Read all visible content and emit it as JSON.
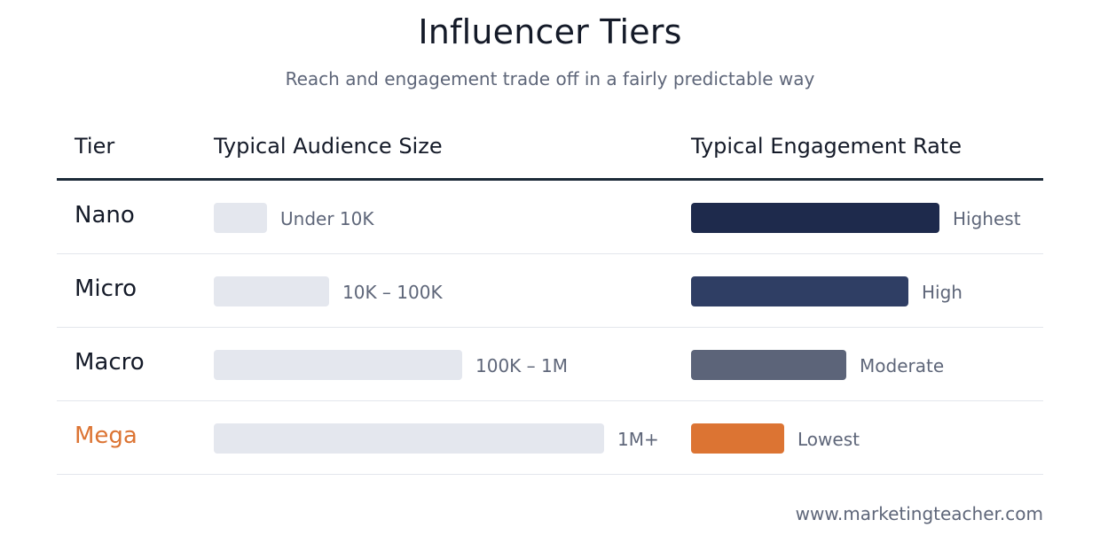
{
  "title": "Influencer Tiers",
  "subtitle": "Reach and engagement trade off in a fairly predictable way",
  "headers": {
    "tier": "Tier",
    "audience": "Typical Audience Size",
    "engagement": "Typical Engagement Rate"
  },
  "rows": [
    {
      "tier": "Nano",
      "audience_label": "Under 10K",
      "audience_level": 1,
      "engagement_label": "Highest",
      "engagement_level": 4,
      "engagement_color": "#1e2a4c"
    },
    {
      "tier": "Micro",
      "audience_label": "10K – 100K",
      "audience_level": 2,
      "engagement_label": "High",
      "engagement_level": 3.5,
      "engagement_color": "#2f3e64"
    },
    {
      "tier": "Macro",
      "audience_label": "100K – 1M",
      "audience_level": 3,
      "engagement_label": "Moderate",
      "engagement_level": 2.5,
      "engagement_color": "#5c6479"
    },
    {
      "tier": "Mega",
      "audience_label": "1M+",
      "audience_level": 4,
      "engagement_label": "Lowest",
      "engagement_level": 1.5,
      "engagement_color": "#dc7433"
    }
  ],
  "colors": {
    "accent": "#dc7433",
    "audience_bar": "#e4e7ee",
    "header_rule": "#1c2a38"
  },
  "footer": "www.marketingteacher.com"
}
